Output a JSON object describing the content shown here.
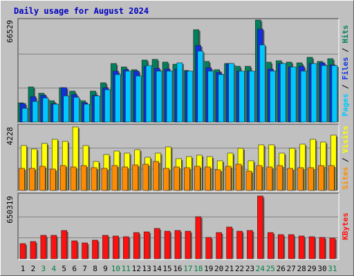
{
  "chart_data": [
    {
      "type": "bar",
      "title": "Daily usage for August 2024",
      "categories": [
        "1",
        "2",
        "3",
        "4",
        "5",
        "6",
        "7",
        "8",
        "9",
        "10",
        "11",
        "12",
        "13",
        "14",
        "15",
        "16",
        "17",
        "18",
        "19",
        "20",
        "21",
        "22",
        "23",
        "24",
        "25",
        "26",
        "27",
        "28",
        "29",
        "30",
        "31"
      ],
      "weekend_categories": [
        "3",
        "4",
        "10",
        "11",
        "17",
        "18",
        "24",
        "25",
        "31"
      ],
      "weekend_color": "#008040",
      "ylim": [
        0,
        66529
      ],
      "grid_divisions": 3,
      "legend_separator": " / ",
      "series": [
        {
          "name": "Hits",
          "color": "#00805c",
          "values": [
            12590,
            22925,
            18880,
            13935,
            22475,
            20230,
            13935,
            20230,
            25620,
            38210,
            35960,
            34160,
            40455,
            40905,
            39105,
            37760,
            33710,
            60230,
            39555,
            34160,
            38210,
            36410,
            36410,
            66529,
            39105,
            40005,
            39105,
            38655,
            42255,
            39555,
            41355
          ]
        },
        {
          "name": "Files",
          "color": "#1030e0",
          "values": [
            12137,
            16632,
            17531,
            12137,
            22475,
            17980,
            12586,
            17531,
            22475,
            33263,
            34162,
            33263,
            36410,
            35061,
            34612,
            34612,
            33263,
            49895,
            35511,
            32364,
            38208,
            33263,
            33263,
            60683,
            34612,
            38208,
            35960,
            36410,
            38208,
            38657,
            37309
          ]
        },
        {
          "name": "Pages",
          "color": "#00c8ff",
          "values": [
            8990,
            13485,
            15733,
            11687,
            17081,
            16182,
            11687,
            17081,
            21127,
            31016,
            33263,
            30117,
            36859,
            33263,
            33263,
            38657,
            33263,
            46299,
            33263,
            31016,
            38208,
            33263,
            33263,
            50344,
            33263,
            38208,
            35960,
            33263,
            38208,
            36859,
            36859
          ]
        }
      ]
    },
    {
      "type": "bar",
      "ylim": [
        0,
        4228
      ],
      "grid_divisions": 3,
      "legend_separator": " / ",
      "series": [
        {
          "name": "Visits",
          "color": "#ffff00",
          "values": [
            2990,
            2760,
            3128,
            3404,
            3266,
            4228,
            2990,
            1932,
            2392,
            2622,
            2484,
            2714,
            2208,
            2484,
            2898,
            2116,
            2254,
            2346,
            2254,
            1978,
            2484,
            2806,
            1978,
            3036,
            3036,
            2484,
            2806,
            3082,
            3404,
            3220,
            3680
          ]
        },
        {
          "name": "Sites",
          "color": "#ff8c00",
          "values": [
            1472,
            1472,
            1610,
            1426,
            1656,
            1564,
            1656,
            1518,
            1472,
            1656,
            1564,
            1702,
            1748,
            1932,
            1472,
            1564,
            1518,
            1610,
            1564,
            1380,
            1610,
            1748,
            1288,
            1656,
            1564,
            1656,
            1472,
            1518,
            1518,
            1656,
            1656
          ]
        }
      ]
    },
    {
      "type": "bar",
      "ylim": [
        0,
        650319
      ],
      "grid_divisions": 3,
      "series": [
        {
          "name": "KBytes",
          "color": "#ff1010",
          "values": [
            157212,
            178650,
            242964,
            242964,
            292986,
            185796,
            164358,
            192942,
            242964,
            235818,
            228672,
            271548,
            278694,
            314424,
            285840,
            292986,
            285840,
            435906,
            221526,
            271548,
            328716,
            285840,
            292986,
            650319,
            271548,
            250110,
            250110,
            235818,
            228672,
            221526,
            214380
          ]
        }
      ]
    }
  ]
}
